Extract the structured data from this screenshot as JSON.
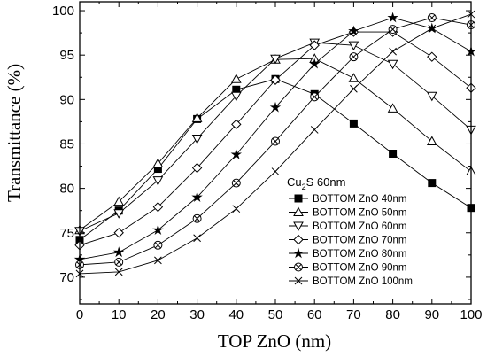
{
  "chart_data": {
    "type": "line",
    "xlabel": "TOP ZnO (nm)",
    "ylabel": "Transmittance (%)",
    "xlim": [
      0,
      100
    ],
    "ylim": [
      67,
      101
    ],
    "xticks": [
      0,
      10,
      20,
      30,
      40,
      50,
      60,
      70,
      80,
      90,
      100
    ],
    "yticks": [
      70,
      75,
      80,
      85,
      90,
      95,
      100
    ],
    "legend_title": {
      "main": "Cu",
      "sub": "2",
      "rest": "S 60nm"
    },
    "legend_placement": "bottom-right",
    "x": [
      0,
      10,
      20,
      30,
      40,
      50,
      60,
      70,
      80,
      90,
      100
    ],
    "series": [
      {
        "name": "BOTTOM ZnO 40nm",
        "marker": "square-filled",
        "values": [
          74.2,
          77.5,
          82.2,
          87.8,
          91.1,
          92.3,
          90.6,
          87.3,
          83.9,
          80.6,
          77.8
        ]
      },
      {
        "name": "BOTTOM ZnO 50nm",
        "marker": "triangle-up",
        "values": [
          75.3,
          78.5,
          82.8,
          87.9,
          92.3,
          94.5,
          94.6,
          92.4,
          89.0,
          85.3,
          81.9
        ]
      },
      {
        "name": "BOTTOM ZnO 60nm",
        "marker": "triangle-down",
        "values": [
          75.2,
          77.2,
          80.9,
          85.6,
          90.4,
          94.6,
          96.4,
          96.1,
          94.0,
          90.4,
          86.6
        ]
      },
      {
        "name": "BOTTOM ZnO 70nm",
        "marker": "diamond",
        "values": [
          73.6,
          75.0,
          77.9,
          82.3,
          87.2,
          92.2,
          96.1,
          97.6,
          97.6,
          94.8,
          91.3
        ]
      },
      {
        "name": "BOTTOM ZnO 80nm",
        "marker": "star",
        "values": [
          72.0,
          72.8,
          75.3,
          79.0,
          83.8,
          89.1,
          94.0,
          97.7,
          99.2,
          98.0,
          95.4
        ]
      },
      {
        "name": "BOTTOM ZnO 90nm",
        "marker": "circle-cross",
        "values": [
          71.4,
          71.7,
          73.6,
          76.6,
          80.6,
          85.3,
          90.3,
          94.8,
          97.9,
          99.2,
          98.4
        ]
      },
      {
        "name": "BOTTOM ZnO 100nm",
        "marker": "x",
        "values": [
          70.4,
          70.6,
          71.9,
          74.4,
          77.7,
          81.9,
          86.6,
          91.2,
          95.4,
          98.0,
          99.6
        ]
      }
    ]
  }
}
